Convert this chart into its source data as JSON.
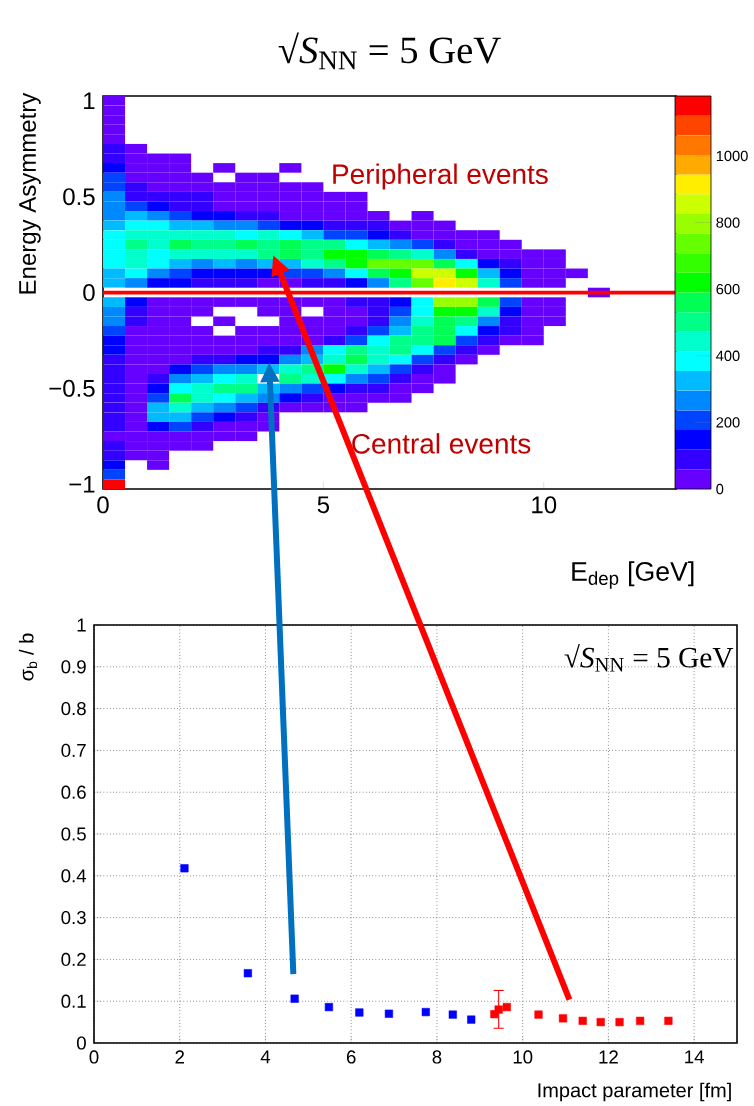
{
  "chart_data": [
    {
      "type": "heatmap",
      "title": "√*S*$_{NN}$ = 5 GeV",
      "xlabel": "E$_{dep}$ [GeV]",
      "ylabel": "Energy Asymmetry",
      "cells": [
        [
          30,
          null,
          null,
          null,
          null,
          null,
          null,
          null,
          null,
          null,
          null,
          null,
          null,
          null,
          null,
          null,
          null,
          null,
          null,
          null,
          null,
          null,
          null,
          null,
          null,
          null
        ],
        [
          30,
          null,
          null,
          null,
          null,
          null,
          null,
          null,
          null,
          null,
          null,
          null,
          null,
          null,
          null,
          null,
          null,
          null,
          null,
          null,
          null,
          null,
          null,
          null,
          null,
          null
        ],
        [
          30,
          null,
          null,
          null,
          null,
          null,
          null,
          null,
          null,
          null,
          null,
          null,
          null,
          null,
          null,
          null,
          null,
          null,
          null,
          null,
          null,
          null,
          null,
          null,
          null,
          null
        ],
        [
          30,
          null,
          null,
          null,
          null,
          null,
          null,
          null,
          null,
          null,
          null,
          null,
          null,
          null,
          null,
          null,
          null,
          null,
          null,
          null,
          null,
          null,
          null,
          null,
          null,
          null
        ],
        [
          30,
          null,
          null,
          null,
          null,
          null,
          null,
          null,
          null,
          null,
          null,
          null,
          null,
          null,
          null,
          null,
          null,
          null,
          null,
          null,
          null,
          null,
          null,
          null,
          null,
          null
        ],
        [
          90,
          30,
          null,
          null,
          null,
          null,
          null,
          null,
          null,
          null,
          null,
          null,
          null,
          null,
          null,
          null,
          null,
          null,
          null,
          null,
          null,
          null,
          null,
          null,
          null,
          null
        ],
        [
          90,
          30,
          30,
          30,
          null,
          null,
          null,
          null,
          null,
          null,
          null,
          null,
          null,
          null,
          null,
          null,
          null,
          null,
          null,
          null,
          null,
          null,
          null,
          null,
          null,
          null
        ],
        [
          150,
          30,
          30,
          30,
          null,
          30,
          null,
          null,
          30,
          null,
          null,
          null,
          null,
          null,
          null,
          null,
          null,
          null,
          null,
          null,
          null,
          null,
          null,
          null,
          null,
          null
        ],
        [
          200,
          30,
          30,
          30,
          30,
          null,
          30,
          30,
          null,
          null,
          null,
          null,
          null,
          null,
          null,
          null,
          null,
          null,
          null,
          null,
          null,
          null,
          null,
          null,
          null,
          null
        ],
        [
          200,
          90,
          30,
          30,
          30,
          30,
          30,
          30,
          30,
          30,
          null,
          null,
          null,
          null,
          null,
          null,
          null,
          null,
          null,
          null,
          null,
          null,
          null,
          null,
          null,
          null
        ],
        [
          260,
          90,
          90,
          90,
          90,
          30,
          30,
          30,
          30,
          30,
          30,
          30,
          null,
          null,
          null,
          null,
          null,
          null,
          null,
          null,
          null,
          null,
          null,
          null,
          null,
          null
        ],
        [
          260,
          200,
          150,
          90,
          90,
          30,
          30,
          30,
          30,
          30,
          30,
          30,
          null,
          null,
          null,
          null,
          null,
          null,
          null,
          null,
          null,
          null,
          null,
          null,
          null,
          null
        ],
        [
          260,
          320,
          260,
          200,
          150,
          150,
          90,
          90,
          30,
          30,
          30,
          30,
          30,
          null,
          30,
          null,
          null,
          null,
          null,
          null,
          null,
          null,
          null,
          null,
          null,
          null
        ],
        [
          320,
          380,
          380,
          320,
          320,
          260,
          260,
          200,
          150,
          150,
          90,
          90,
          90,
          30,
          30,
          30,
          null,
          null,
          null,
          null,
          null,
          null,
          null,
          null,
          null,
          null
        ],
        [
          380,
          440,
          440,
          440,
          440,
          440,
          380,
          440,
          380,
          320,
          200,
          200,
          150,
          90,
          30,
          30,
          30,
          30,
          null,
          null,
          null,
          null,
          null,
          null,
          null,
          null
        ],
        [
          380,
          500,
          440,
          560,
          500,
          500,
          560,
          500,
          560,
          500,
          500,
          380,
          320,
          260,
          200,
          90,
          30,
          30,
          30,
          null,
          null,
          null,
          null,
          null,
          null,
          null
        ],
        [
          380,
          440,
          380,
          440,
          440,
          440,
          440,
          500,
          560,
          500,
          620,
          620,
          560,
          500,
          440,
          260,
          90,
          30,
          30,
          30,
          30,
          null,
          null,
          null,
          null,
          null
        ],
        [
          380,
          440,
          380,
          320,
          260,
          320,
          260,
          320,
          320,
          440,
          500,
          620,
          740,
          740,
          740,
          560,
          380,
          150,
          90,
          30,
          30,
          null,
          null,
          null,
          null,
          null
        ],
        [
          320,
          380,
          260,
          200,
          150,
          150,
          150,
          150,
          200,
          200,
          260,
          380,
          560,
          620,
          860,
          860,
          620,
          320,
          150,
          30,
          30,
          30,
          null,
          null,
          null,
          null
        ],
        [
          320,
          260,
          150,
          150,
          90,
          90,
          90,
          30,
          30,
          90,
          90,
          150,
          260,
          500,
          740,
          920,
          860,
          440,
          200,
          30,
          30,
          null,
          null,
          null,
          null,
          null
        ],
        [
          null,
          null,
          null,
          null,
          null,
          null,
          null,
          null,
          null,
          null,
          null,
          null,
          null,
          null,
          null,
          null,
          null,
          null,
          null,
          null,
          null,
          null,
          30,
          null,
          null,
          null
        ],
        [
          320,
          150,
          30,
          30,
          30,
          30,
          30,
          30,
          30,
          30,
          30,
          90,
          90,
          150,
          380,
          800,
          800,
          560,
          200,
          30,
          30,
          null,
          null,
          null,
          null,
          null
        ],
        [
          260,
          90,
          30,
          30,
          30,
          null,
          null,
          30,
          30,
          null,
          30,
          30,
          90,
          200,
          380,
          620,
          620,
          440,
          150,
          30,
          30,
          null,
          null,
          null,
          null,
          null
        ],
        [
          260,
          90,
          30,
          30,
          null,
          30,
          null,
          null,
          30,
          30,
          30,
          30,
          90,
          260,
          440,
          560,
          500,
          260,
          90,
          30,
          30,
          null,
          null,
          null,
          null,
          null
        ],
        [
          200,
          30,
          30,
          30,
          30,
          null,
          30,
          30,
          30,
          30,
          30,
          90,
          200,
          320,
          500,
          560,
          380,
          150,
          90,
          30,
          null,
          null,
          null,
          null,
          null,
          null
        ],
        [
          150,
          30,
          30,
          30,
          30,
          30,
          30,
          30,
          30,
          30,
          90,
          200,
          380,
          500,
          500,
          560,
          200,
          90,
          30,
          30,
          null,
          null,
          null,
          null,
          null,
          null
        ],
        [
          150,
          30,
          30,
          30,
          30,
          30,
          30,
          90,
          90,
          260,
          380,
          500,
          440,
          500,
          380,
          200,
          90,
          30,
          null,
          null,
          null,
          null,
          null,
          null,
          null,
          null
        ],
        [
          90,
          30,
          30,
          30,
          90,
          90,
          150,
          150,
          260,
          320,
          440,
          560,
          440,
          380,
          200,
          90,
          30,
          null,
          null,
          null,
          null,
          null,
          null,
          null,
          null,
          null
        ],
        [
          90,
          30,
          30,
          150,
          200,
          260,
          260,
          320,
          440,
          500,
          620,
          440,
          320,
          200,
          90,
          30,
          null,
          null,
          null,
          null,
          null,
          null,
          null,
          null,
          null,
          null
        ],
        [
          90,
          30,
          90,
          260,
          320,
          380,
          440,
          null,
          500,
          440,
          380,
          260,
          200,
          90,
          30,
          30,
          null,
          null,
          null,
          null,
          null,
          null,
          null,
          null,
          null,
          null
        ],
        [
          90,
          30,
          150,
          380,
          440,
          500,
          500,
          320,
          260,
          200,
          150,
          90,
          90,
          30,
          30,
          null,
          null,
          null,
          null,
          null,
          null,
          null,
          null,
          null,
          null,
          null
        ],
        [
          90,
          30,
          200,
          560,
          440,
          380,
          320,
          260,
          150,
          90,
          30,
          30,
          30,
          30,
          null,
          null,
          null,
          null,
          null,
          null,
          null,
          null,
          null,
          null,
          null,
          null
        ],
        [
          90,
          30,
          320,
          440,
          320,
          260,
          200,
          90,
          30,
          30,
          30,
          30,
          null,
          null,
          null,
          null,
          null,
          null,
          null,
          null,
          null,
          null,
          null,
          null,
          null,
          null
        ],
        [
          90,
          30,
          320,
          320,
          200,
          150,
          90,
          30,
          null,
          null,
          null,
          null,
          null,
          null,
          null,
          null,
          null,
          null,
          null,
          null,
          null,
          null,
          null,
          null,
          null,
          null
        ],
        [
          90,
          30,
          150,
          200,
          90,
          30,
          30,
          30,
          null,
          null,
          null,
          null,
          null,
          null,
          null,
          null,
          null,
          null,
          null,
          null,
          null,
          null,
          null,
          null,
          null,
          null
        ],
        [
          30,
          30,
          30,
          30,
          30,
          30,
          30,
          null,
          null,
          null,
          null,
          null,
          null,
          null,
          null,
          null,
          null,
          null,
          null,
          null,
          null,
          null,
          null,
          null,
          null,
          null
        ],
        [
          90,
          30,
          30,
          30,
          30,
          null,
          null,
          null,
          null,
          null,
          null,
          null,
          null,
          null,
          null,
          null,
          null,
          null,
          null,
          null,
          null,
          null,
          null,
          null,
          null,
          null
        ],
        [
          90,
          30,
          30,
          null,
          null,
          null,
          null,
          null,
          null,
          null,
          null,
          null,
          null,
          null,
          null,
          null,
          null,
          null,
          null,
          null,
          null,
          null,
          null,
          null,
          null,
          null
        ],
        [
          150,
          null,
          30,
          null,
          null,
          null,
          null,
          null,
          null,
          null,
          null,
          null,
          null,
          null,
          null,
          null,
          null,
          null,
          null,
          null,
          null,
          null,
          null,
          null,
          null,
          null
        ],
        [
          200,
          null,
          null,
          null,
          null,
          null,
          null,
          null,
          null,
          null,
          null,
          null,
          null,
          null,
          null,
          null,
          null,
          null,
          null,
          null,
          null,
          null,
          null,
          null,
          null,
          null
        ],
        [
          1150,
          null,
          null,
          null,
          null,
          null,
          null,
          null,
          null,
          null,
          null,
          null,
          null,
          null,
          null,
          null,
          null,
          null,
          null,
          null,
          null,
          null,
          null,
          null,
          null,
          null
        ]
      ],
      "xlim": [
        0,
        13
      ],
      "ylim": [
        -1.025,
        1.025
      ],
      "xticks": [
        0,
        5,
        10
      ],
      "yticks": [
        {
          "value": -1,
          "label": "−1"
        },
        {
          "value": -0.5,
          "label": "−0.5"
        },
        0,
        0.5,
        1
      ],
      "clim": [
        0,
        1180
      ],
      "cticks": [
        0,
        200,
        400,
        600,
        800,
        1000
      ],
      "ref_lines": [
        {
          "axis": "y",
          "value": 0,
          "color": "#ff0000"
        }
      ],
      "annotations": [
        "Peripheral events",
        "Central events"
      ]
    },
    {
      "type": "scatter",
      "xlabel": "Impact parameter [fm]",
      "ylabel": "σ$_{b}$ / b",
      "series": [
        {
          "color": "#0000ff",
          "x": [
            2.11,
            3.59,
            4.68,
            5.48,
            6.19,
            6.88,
            7.74,
            8.37,
            8.8
          ],
          "values": [
            0.418,
            0.167,
            0.106,
            0.086,
            0.073,
            0.07,
            0.074,
            0.068,
            0.056
          ]
        },
        {
          "color": "#ff0000",
          "x": [
            9.34,
            9.44,
            9.63,
            10.37,
            10.94,
            11.4,
            11.82,
            12.26,
            12.74,
            13.4
          ],
          "values": [
            0.069,
            0.08,
            0.086,
            0.068,
            0.059,
            0.053,
            0.05,
            0.05,
            0.053,
            0.053
          ],
          "errors": [
            null,
            [
              0.034,
              0.127
            ],
            null,
            null,
            null,
            null,
            null,
            null,
            null,
            null
          ]
        }
      ],
      "xlim": [
        0,
        15
      ],
      "ylim": [
        0,
        1
      ],
      "xticks": [
        0,
        2,
        4,
        6,
        8,
        10,
        12,
        14
      ],
      "yticks": [
        0,
        0.1,
        0.2,
        0.3,
        0.4,
        0.5,
        0.6,
        0.7,
        0.8,
        0.9,
        1
      ],
      "grid": true,
      "marker": "square",
      "annotations": [
        "√*S*$_{NN}$ = 5 GeV"
      ]
    }
  ]
}
